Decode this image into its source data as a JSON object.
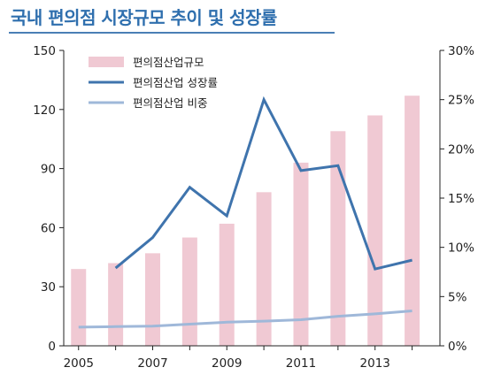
{
  "chart_data": {
    "type": "bar",
    "title": "국내 편의점 시장규모 추이 및 성장률",
    "x": [
      2005,
      2006,
      2007,
      2008,
      2009,
      2010,
      2011,
      2012,
      2013,
      2014
    ],
    "x_tick_labels": [
      "2005",
      "2007",
      "2009",
      "2011",
      "2013"
    ],
    "xlim": [
      2004.6,
      2014.75
    ],
    "left_axis": {
      "ylim": [
        0,
        150
      ],
      "ticks": [
        0,
        30,
        60,
        90,
        120,
        150
      ],
      "tick_labels": [
        "0",
        "30",
        "60",
        "90",
        "120",
        "150"
      ]
    },
    "right_axis": {
      "ylim": [
        0,
        30
      ],
      "ticks": [
        0,
        5,
        10,
        15,
        20,
        25,
        30
      ],
      "tick_labels": [
        "0%",
        "5%",
        "10%",
        "15%",
        "20%",
        "25%",
        "30%"
      ]
    },
    "series": [
      {
        "name": "편의점산업규모",
        "type": "bar",
        "axis": "left",
        "color": "#f0c9d3",
        "values": [
          39,
          42,
          47,
          55,
          62,
          78,
          93,
          109,
          117,
          127
        ]
      },
      {
        "name": "편의점산업 성장률",
        "type": "line",
        "axis": "right",
        "color": "#3f74ad",
        "values": [
          null,
          7.9,
          11,
          16.1,
          13.2,
          25.0,
          17.8,
          18.3,
          7.8,
          8.7
        ]
      },
      {
        "name": "편의점산업 비중",
        "type": "line",
        "axis": "right",
        "color": "#9fb8d9",
        "values": [
          1.9,
          1.95,
          2.0,
          2.2,
          2.4,
          2.5,
          2.65,
          3.0,
          3.25,
          3.55
        ]
      }
    ],
    "legend_position": "top-left",
    "grid": false
  }
}
